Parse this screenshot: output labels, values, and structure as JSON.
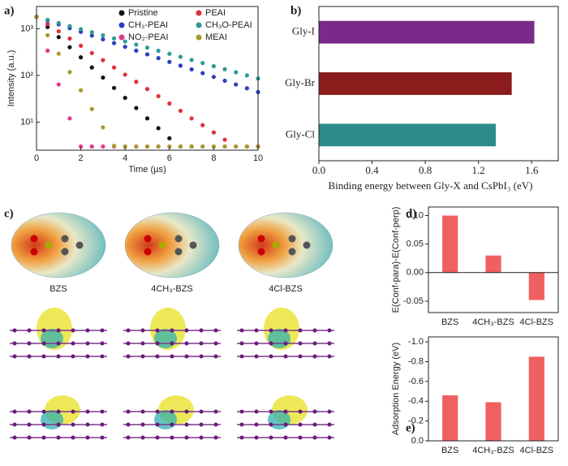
{
  "chart_data": [
    {
      "type": "scatter",
      "panel_label": "a)",
      "x_label": "Time (µs)",
      "y_label": "Intensity (a.u.)",
      "x": [
        0,
        0.5,
        1,
        1.5,
        2,
        2.5,
        3,
        3.5,
        4,
        4.5,
        5,
        5.5,
        6,
        6.5,
        7,
        7.5,
        8,
        8.5,
        9,
        9.5,
        10
      ],
      "xlim": [
        0,
        10
      ],
      "xticks": [
        0,
        2,
        4,
        6,
        8,
        10
      ],
      "ylim": [
        2.5,
        3000
      ],
      "log_y": true,
      "yticks": [
        {
          "value": 10,
          "label": "10¹"
        },
        {
          "value": 100,
          "label": "10²"
        },
        {
          "value": 1000,
          "label": "10³"
        }
      ],
      "series": [
        {
          "name": "Pristine",
          "color": "#111111",
          "values": [
            1800,
            1092,
            662,
            402,
            244,
            148,
            90,
            54,
            33,
            20,
            12,
            7.4,
            4.5,
            3,
            3,
            null,
            null,
            null,
            null,
            null,
            null
          ]
        },
        {
          "name": "PEAI",
          "color": "#e0303a",
          "values": [
            1800,
            1260,
            882,
            617,
            432,
            302,
            212,
            148,
            104,
            73,
            51,
            36,
            25,
            17.5,
            12,
            8.6,
            6,
            4.2,
            3,
            3,
            3
          ]
        },
        {
          "name": "CH₃-PEAI",
          "color": "#2a3fc0",
          "values": [
            1800,
            1496,
            1243,
            1033,
            859,
            714,
            593,
            493,
            410,
            340,
            283,
            235,
            195,
            162,
            135,
            112,
            93,
            77,
            64,
            53,
            44
          ]
        },
        {
          "name": "CH₃O-PEAI",
          "color": "#2e9a96",
          "values": [
            1800,
            1546,
            1328,
            1141,
            980,
            842,
            723,
            621,
            534,
            458,
            394,
            338,
            291,
            250,
            214,
            184,
            158,
            136,
            117,
            100,
            86
          ]
        },
        {
          "name": "NO₂-PEAI",
          "color": "#e8338a",
          "values": [
            1800,
            340,
            64,
            12,
            3,
            3,
            3,
            3,
            3,
            3,
            3,
            3,
            3,
            3,
            3,
            3,
            3,
            3,
            3,
            3,
            3
          ]
        },
        {
          "name": "MEAI",
          "color": "#a89a2a",
          "values": [
            1800,
            725,
            292,
            118,
            48,
            19,
            7.7,
            3.1,
            3,
            3,
            3,
            3,
            3,
            3,
            3,
            3,
            3,
            3,
            3,
            3,
            3
          ]
        }
      ]
    },
    {
      "type": "hbar",
      "panel_label": "b)",
      "x_label": "Binding energy between Gly-X and CsPbI₃ (eV)",
      "categories": [
        "Gly-I",
        "Gly-Br",
        "Gly-Cl"
      ],
      "values": [
        1.62,
        1.45,
        1.33
      ],
      "colors": [
        "#7b2a8a",
        "#8b1c1c",
        "#2e8b8b"
      ],
      "xlim": [
        0,
        1.8
      ],
      "xticks": [
        {
          "value": 0,
          "label": "0.0"
        },
        0.4,
        0.8,
        1.2,
        1.6
      ]
    },
    {
      "type": "bar",
      "panel_label": "d)",
      "y_label": "E(Conf-para)-E(Conf-perp)",
      "categories": [
        "BZS",
        "4CH₃-BZS",
        "4Cl-BZS"
      ],
      "values": [
        0.1,
        0.03,
        -0.048
      ],
      "color": "#f06060",
      "ylim": [
        -0.07,
        0.115
      ],
      "yticks": [
        {
          "value": -0.05,
          "label": "-0.05"
        },
        {
          "value": 0,
          "label": "0.00"
        },
        {
          "value": 0.05,
          "label": "0.05"
        },
        {
          "value": 0.1,
          "label": "0.10"
        }
      ]
    },
    {
      "type": "bar",
      "panel_label": "e)",
      "y_label": "Adsorption Energy (eV)",
      "categories": [
        "BZS",
        "4CH₃-BZS",
        "4Cl-BZS"
      ],
      "values": [
        -0.46,
        -0.39,
        -0.85
      ],
      "color": "#f06060",
      "ylim": [
        0,
        -1.05
      ],
      "yticks": [
        {
          "value": -1.0,
          "label": "-1.0"
        },
        -0.8,
        -0.6,
        -0.4,
        -0.2,
        {
          "value": 0,
          "label": "0.0"
        }
      ]
    }
  ],
  "figure_c": {
    "panel_label": "c)",
    "molecules": [
      "BZS",
      "4CH₃-BZS",
      "4Cl-BZS"
    ]
  }
}
